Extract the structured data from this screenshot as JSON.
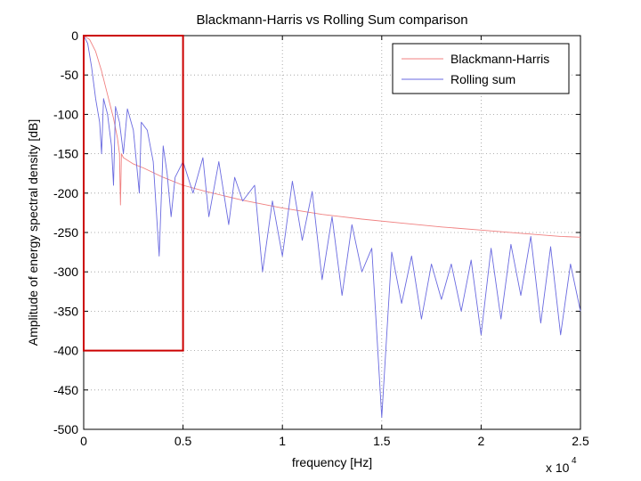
{
  "chart_data": {
    "type": "line",
    "title": "Blackmann-Harris vs Rolling Sum comparison",
    "xlabel": "frequency [Hz]",
    "ylabel": "Amplitude of energy spectral density [dB]",
    "x_multiplier_label": "x 10",
    "x_multiplier_exponent": "4",
    "xlim": [
      0,
      2.5
    ],
    "ylim": [
      -500,
      0
    ],
    "xticks": [
      0,
      0.5,
      1,
      1.5,
      2,
      2.5
    ],
    "xtick_labels": [
      "0",
      "0.5",
      "1",
      "1.5",
      "2",
      "2.5"
    ],
    "yticks": [
      0,
      -50,
      -100,
      -150,
      -200,
      -250,
      -300,
      -350,
      -400,
      -450,
      -500
    ],
    "ytick_labels": [
      "0",
      "-50",
      "-100",
      "-150",
      "-200",
      "-250",
      "-300",
      "-350",
      "-400",
      "-450",
      "-500"
    ],
    "grid": true,
    "legend_position": "top-right",
    "series": [
      {
        "name": "Blackmann-Harris",
        "color": "#f08080",
        "x": [
          0,
          0.03,
          0.06,
          0.09,
          0.12,
          0.15,
          0.17,
          0.18,
          0.185,
          0.19,
          0.2,
          0.25,
          0.3,
          0.4,
          0.5,
          0.6,
          0.7,
          0.8,
          0.9,
          1.0,
          1.2,
          1.4,
          1.6,
          1.8,
          2.0,
          2.2,
          2.4,
          2.5
        ],
        "y": [
          0,
          -5,
          -20,
          -45,
          -75,
          -105,
          -130,
          -150,
          -215,
          -150,
          -155,
          -163,
          -168,
          -180,
          -190,
          -197,
          -203,
          -209,
          -214,
          -219,
          -227,
          -233,
          -238,
          -243,
          -247,
          -251,
          -255,
          -256
        ]
      },
      {
        "name": "Rolling sum",
        "color": "#6a6ae0",
        "x": [
          0,
          0.02,
          0.04,
          0.06,
          0.08,
          0.09,
          0.1,
          0.12,
          0.14,
          0.15,
          0.16,
          0.18,
          0.2,
          0.22,
          0.25,
          0.28,
          0.29,
          0.32,
          0.35,
          0.38,
          0.4,
          0.42,
          0.44,
          0.46,
          0.5,
          0.55,
          0.6,
          0.63,
          0.68,
          0.73,
          0.76,
          0.8,
          0.86,
          0.9,
          0.95,
          1.0,
          1.05,
          1.1,
          1.15,
          1.2,
          1.25,
          1.3,
          1.35,
          1.4,
          1.45,
          1.5,
          1.55,
          1.6,
          1.65,
          1.7,
          1.75,
          1.8,
          1.85,
          1.9,
          1.95,
          2.0,
          2.05,
          2.1,
          2.15,
          2.2,
          2.25,
          2.3,
          2.35,
          2.4,
          2.45,
          2.5
        ],
        "y": [
          0,
          -10,
          -40,
          -80,
          -110,
          -150,
          -80,
          -100,
          -140,
          -190,
          -90,
          -110,
          -150,
          -93,
          -120,
          -200,
          -110,
          -120,
          -160,
          -280,
          -140,
          -175,
          -230,
          -180,
          -160,
          -200,
          -155,
          -230,
          -160,
          -240,
          -180,
          -210,
          -190,
          -300,
          -210,
          -280,
          -185,
          -260,
          -198,
          -310,
          -230,
          -330,
          -240,
          -300,
          -270,
          -485,
          -275,
          -340,
          -280,
          -360,
          -290,
          -335,
          -290,
          -350,
          -285,
          -380,
          -270,
          -360,
          -265,
          -330,
          -255,
          -365,
          -268,
          -380,
          -290,
          -350
        ]
      }
    ],
    "highlight_box": {
      "x": [
        0,
        0.5
      ],
      "y": [
        -400,
        0
      ],
      "color": "#cc0000"
    }
  }
}
